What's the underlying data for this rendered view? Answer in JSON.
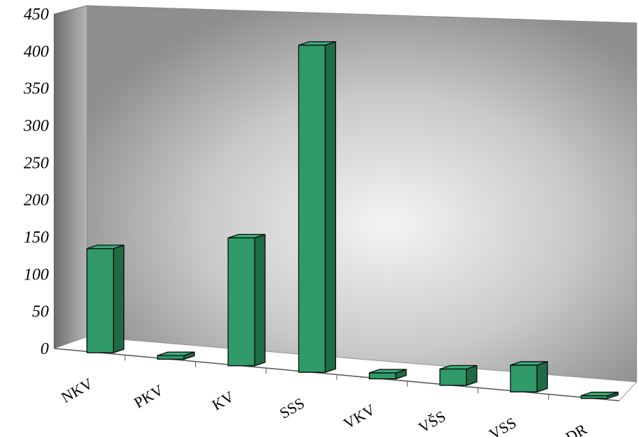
{
  "chart_data": {
    "type": "bar",
    "style": "3d-column",
    "categories": [
      "NKV",
      "PKV",
      "KV",
      "SSS",
      "VKV",
      "VŠS",
      "VSS",
      "DR"
    ],
    "values": [
      140,
      5,
      172,
      440,
      8,
      22,
      36,
      3
    ],
    "title": "",
    "xlabel": "",
    "ylabel": "",
    "ylim": [
      0,
      450
    ],
    "yticks": [
      0,
      50,
      100,
      150,
      200,
      250,
      300,
      350,
      400,
      450
    ],
    "grid": false,
    "legend": "none",
    "colors": {
      "bar_front": "#2f9a68",
      "bar_top": "#3aad79",
      "bar_side": "#1e6b45",
      "bar_edge": "#0a0a0a",
      "wall_dark": "#8a8a8a",
      "wall_light": "#f4f4f4",
      "side_wall": "#7d7d7d",
      "floor": "#ffffff"
    }
  }
}
